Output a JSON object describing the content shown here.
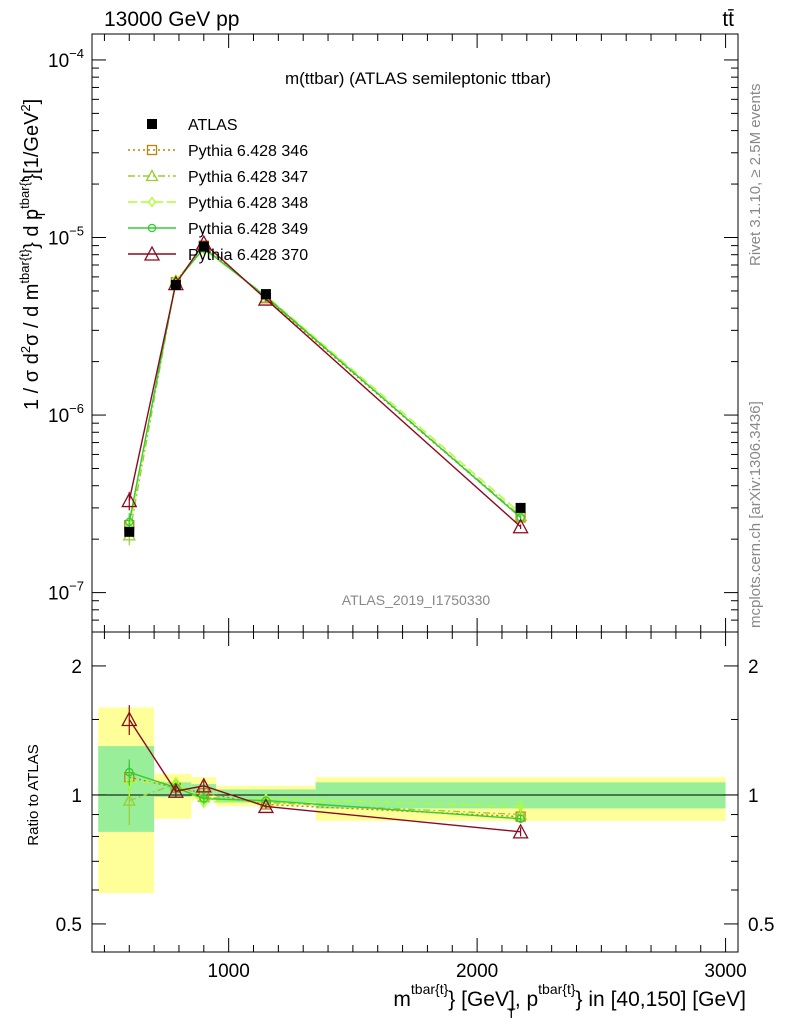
{
  "header": {
    "left": "13000 GeV pp",
    "right": "tt̄"
  },
  "side_labels": {
    "rivet": "Rivet 3.1.10, ≥ 2.5M events",
    "mcplots": "mcplots.cern.ch [arXiv:1306.3436]"
  },
  "chart_data": [
    {
      "type": "line",
      "title": "m(ttbar) (ATLAS semileptonic ttbar)",
      "watermark": "ATLAS_2019_I1750330",
      "ylabel": "1 / σ d²σ / d m^{tbar{t}} d p_T^{tbar{t}} [1/GeV²]",
      "xlabel": "m^{tbar{t}} [GeV], p_T^{tbar{t}} in [40,150] [GeV]",
      "yscale": "log",
      "xlim": [
        450,
        3050
      ],
      "ylim": [
        6e-08,
        0.00014
      ],
      "y_ticks": [
        {
          "v": 1e-07,
          "mant": "10",
          "exp": "−7"
        },
        {
          "v": 1e-06,
          "mant": "10",
          "exp": "−6"
        },
        {
          "v": 1e-05,
          "mant": "10",
          "exp": "−5"
        },
        {
          "v": 0.0001,
          "mant": "10",
          "exp": "−4"
        }
      ],
      "legend_position": "top-left",
      "x": [
        600,
        787.5,
        900,
        1150,
        2175
      ],
      "bins": [
        [
          475,
          725
        ],
        [
          725,
          850
        ],
        [
          850,
          950
        ],
        [
          950,
          1350
        ],
        [
          1350,
          3000
        ]
      ],
      "data": {
        "name": "ATLAS",
        "color": "#000000",
        "values": [
          2.2e-07,
          5.4e-06,
          8.9e-06,
          4.8e-06,
          3e-07
        ]
      },
      "series": [
        {
          "name": "Pythia 6.428 346",
          "color": "#b8860b",
          "marker": "square",
          "dash": "2,3",
          "values": [
            2.4e-07,
            5.6e-06,
            9e-06,
            4.55e-06,
            2.65e-07
          ]
        },
        {
          "name": "Pythia 6.428 347",
          "color": "#9acd32",
          "marker": "triangle",
          "dash": "7,3,2,3",
          "values": [
            2.1e-07,
            5.7e-06,
            8.8e-06,
            4.6e-06,
            2.7e-07
          ]
        },
        {
          "name": "Pythia 6.428 348",
          "color": "#adff2f",
          "marker": "diamond",
          "dash": "9,4",
          "values": [
            2.35e-07,
            5.8e-06,
            8.6e-06,
            4.7e-06,
            2.8e-07
          ]
        },
        {
          "name": "Pythia 6.428 349",
          "color": "#32cd32",
          "marker": "circle",
          "dash": "",
          "values": [
            2.5e-07,
            5.6e-06,
            8.7e-06,
            4.65e-06,
            2.65e-07
          ]
        },
        {
          "name": "Pythia 6.428 370",
          "color": "#8b0a1e",
          "marker": "triangle",
          "dash": "",
          "values": [
            3.3e-07,
            5.5e-06,
            9.3e-06,
            4.5e-06,
            2.35e-07
          ]
        }
      ]
    },
    {
      "type": "line",
      "ylabel": "Ratio to ATLAS",
      "yscale": "log",
      "xlim": [
        450,
        3050
      ],
      "ylim": [
        0.43,
        2.4
      ],
      "x_ticks": [
        "1000",
        "2000",
        "3000"
      ],
      "y_ticks": [
        {
          "v": 0.5,
          "label": "0.5"
        },
        {
          "v": 1,
          "label": "1"
        },
        {
          "v": 2,
          "label": "2"
        }
      ],
      "bands": [
        {
          "bin": [
            475,
            700
          ],
          "stat": [
            0.82,
            1.3
          ],
          "total": [
            0.59,
            1.6
          ]
        },
        {
          "bin": [
            700,
            850
          ],
          "stat": [
            0.99,
            1.07
          ],
          "total": [
            0.88,
            1.12
          ]
        },
        {
          "bin": [
            850,
            950
          ],
          "stat": [
            1.0,
            1.06
          ],
          "total": [
            0.97,
            1.1
          ]
        },
        {
          "bin": [
            950,
            1350
          ],
          "stat": [
            0.96,
            1.03
          ],
          "total": [
            0.94,
            1.05
          ]
        },
        {
          "bin": [
            1350,
            3000
          ],
          "stat": [
            0.93,
            1.07
          ],
          "total": [
            0.87,
            1.1
          ]
        }
      ],
      "series": [
        {
          "name": "Pythia 6.428 346",
          "values": [
            1.1,
            1.04,
            1.01,
            0.95,
            0.89
          ],
          "err": [
            0.08,
            0.03,
            0.03,
            0.01,
            0.02
          ]
        },
        {
          "name": "Pythia 6.428 347",
          "values": [
            0.97,
            1.06,
            0.99,
            0.96,
            0.9
          ],
          "err": [
            0.12,
            0.03,
            0.03,
            0.01,
            0.02
          ]
        },
        {
          "name": "Pythia 6.428 348",
          "values": [
            1.07,
            1.07,
            0.96,
            0.98,
            0.94
          ],
          "err": [
            0.08,
            0.03,
            0.03,
            0.01,
            0.03
          ]
        },
        {
          "name": "Pythia 6.428 349",
          "values": [
            1.13,
            1.04,
            0.98,
            0.97,
            0.88
          ],
          "err": [
            0.08,
            0.03,
            0.03,
            0.01,
            0.02
          ]
        },
        {
          "name": "Pythia 6.428 370",
          "values": [
            1.5,
            1.02,
            1.05,
            0.94,
            0.82
          ],
          "err": [
            0.12,
            0.03,
            0.03,
            0.01,
            0.02
          ]
        }
      ]
    }
  ]
}
